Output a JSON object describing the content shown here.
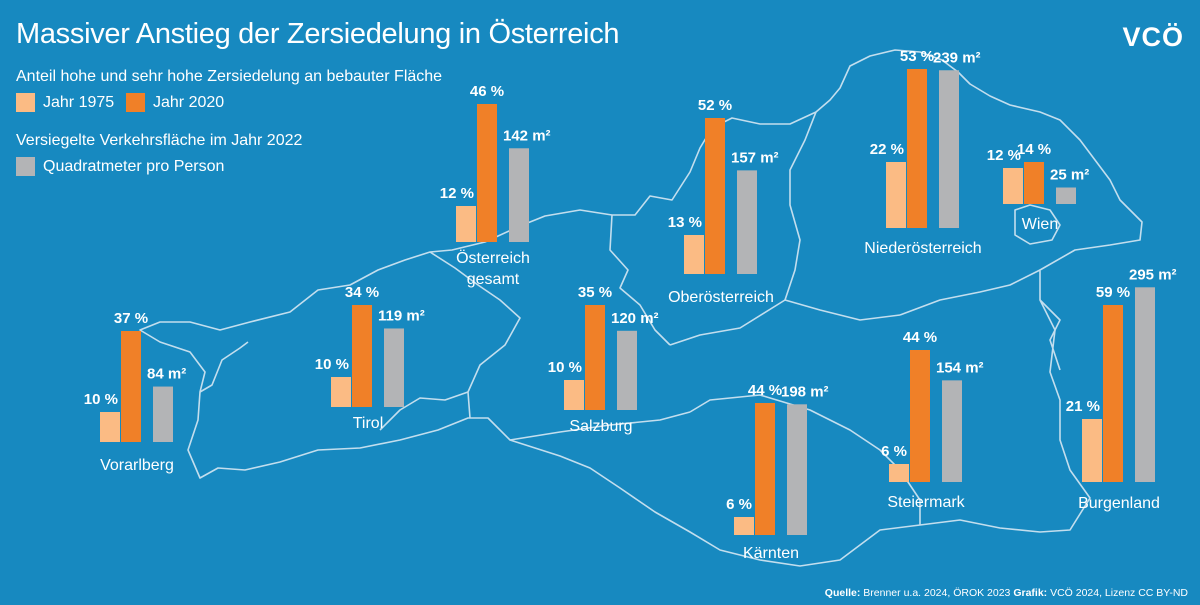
{
  "title": "Massiver Anstieg der Zersiedelung in Österreich",
  "logo": "VCÖ",
  "legend": {
    "group1_title": "Anteil hohe und sehr hohe Zersiedelung an bebauter Fläche",
    "items1": [
      {
        "label": "Jahr 1975",
        "color": "#fbbb84"
      },
      {
        "label": "Jahr 2020",
        "color": "#f08028"
      }
    ],
    "group2_title": "Versiegelte Verkehrsfläche im Jahr 2022",
    "items2": [
      {
        "label": "Quadratmeter pro Person",
        "color": "#b3b4b6"
      }
    ]
  },
  "colors": {
    "background": "#1789c0",
    "border": "#d6e8f3",
    "y1975": "#fbbb84",
    "y2020": "#f08028",
    "area": "#b3b4b6"
  },
  "chart_data": {
    "type": "bar",
    "categories": [
      "Österreich gesamt",
      "Vorarlberg",
      "Tirol",
      "Salzburg",
      "Oberösterreich",
      "Kärnten",
      "Steiermark",
      "Niederösterreich",
      "Wien",
      "Burgenland"
    ],
    "series": [
      {
        "name": "Jahr 1975",
        "unit": "%",
        "values": [
          12,
          10,
          10,
          10,
          13,
          6,
          6,
          22,
          12,
          21
        ]
      },
      {
        "name": "Jahr 2020",
        "unit": "%",
        "values": [
          46,
          37,
          34,
          35,
          52,
          44,
          44,
          53,
          14,
          59
        ]
      },
      {
        "name": "Quadratmeter pro Person",
        "unit": "m²",
        "values": [
          142,
          84,
          119,
          120,
          157,
          198,
          154,
          239,
          25,
          295
        ]
      }
    ],
    "regions": [
      {
        "name": "Österreich\ngesamt",
        "v1975": "12 %",
        "v2020": "46 %",
        "m2": "142 m²"
      },
      {
        "name": "Vorarlberg",
        "v1975": "10 %",
        "v2020": "37 %",
        "m2": "84 m²"
      },
      {
        "name": "Tirol",
        "v1975": "10 %",
        "v2020": "34 %",
        "m2": "119 m²"
      },
      {
        "name": "Salzburg",
        "v1975": "10 %",
        "v2020": "35 %",
        "m2": "120 m²"
      },
      {
        "name": "Oberösterreich",
        "v1975": "13 %",
        "v2020": "52 %",
        "m2": "157 m²"
      },
      {
        "name": "Kärnten",
        "v1975": "6 %",
        "v2020": "44 %",
        "m2": "198 m²"
      },
      {
        "name": "Steiermark",
        "v1975": "6 %",
        "v2020": "44 %",
        "m2": "154 m²"
      },
      {
        "name": "Niederösterreich",
        "v1975": "22 %",
        "v2020": "53 %",
        "m2": "239 m²"
      },
      {
        "name": "Wien",
        "v1975": "12 %",
        "v2020": "14 %",
        "m2": "25 m²"
      },
      {
        "name": "Burgenland",
        "v1975": "21 %",
        "v2020": "59 %",
        "m2": "295 m²"
      }
    ]
  },
  "source": {
    "quelle_label": "Quelle:",
    "quelle_text": " Brenner u.a. 2024, ÖROK 2023 ",
    "grafik_label": "Grafik:",
    "grafik_text": " VCÖ 2024, Lizenz CC BY-ND"
  }
}
